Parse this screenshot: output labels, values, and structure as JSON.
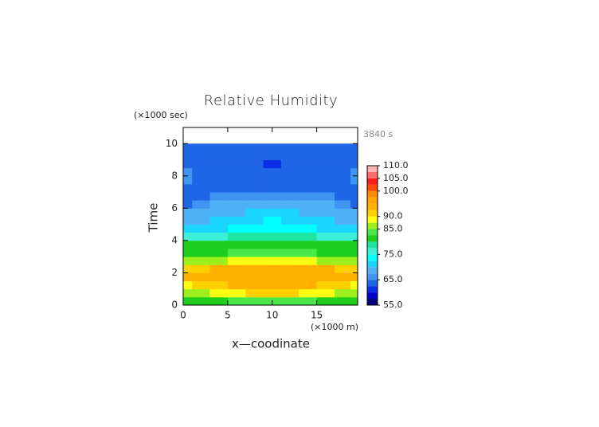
{
  "chart_data": {
    "type": "contour",
    "title": "Relative Humidity",
    "y_unit_label": "(×1000 sec)",
    "x_unit_label": "(×1000 m)",
    "xlabel": "x—coodinate",
    "ylabel": "Time",
    "annotation": "3840 s",
    "xlim": [
      0,
      19.6
    ],
    "ylim": [
      0,
      11
    ],
    "xticks": [
      0,
      5,
      10,
      15
    ],
    "yticks": [
      0,
      2,
      4,
      6,
      8,
      10
    ],
    "x": [
      0,
      2,
      4,
      6,
      8,
      10,
      12,
      14,
      16,
      18,
      19.6
    ],
    "y": [
      0.25,
      0.75,
      1.25,
      1.75,
      2.25,
      2.75,
      3.25,
      3.75,
      4.25,
      4.75,
      5.25,
      5.75,
      6.25,
      6.75,
      7.25,
      7.75,
      8.25,
      8.75,
      9.25,
      9.75
    ],
    "z": [
      [
        81,
        81,
        82,
        83,
        84,
        84,
        84,
        83,
        82,
        81,
        81
      ],
      [
        86,
        87,
        88,
        89,
        91,
        92,
        91,
        89,
        88,
        87,
        86
      ],
      [
        89,
        90,
        92,
        93,
        94,
        94,
        94,
        93,
        92,
        90,
        89
      ],
      [
        93,
        93,
        94,
        94,
        94,
        94,
        94,
        94,
        94,
        93,
        93
      ],
      [
        91,
        92,
        93,
        94,
        94,
        94,
        94,
        94,
        93,
        92,
        91
      ],
      [
        85,
        86,
        87,
        88,
        88,
        89,
        88,
        88,
        87,
        86,
        85
      ],
      [
        82,
        82,
        82,
        83,
        83,
        84,
        83,
        83,
        82,
        82,
        82
      ],
      [
        80,
        80,
        81,
        81,
        81,
        81,
        81,
        81,
        81,
        80,
        80
      ],
      [
        77,
        77,
        77,
        78,
        78,
        78,
        78,
        78,
        77,
        77,
        77
      ],
      [
        70,
        71,
        72,
        73,
        73,
        73,
        73,
        73,
        72,
        71,
        70
      ],
      [
        69,
        69,
        70,
        71,
        72,
        73,
        72,
        71,
        70,
        69,
        69
      ],
      [
        68,
        68,
        68,
        69,
        70,
        71,
        70,
        69,
        68,
        68,
        68
      ],
      [
        64,
        66,
        68,
        68,
        68,
        68,
        68,
        68,
        68,
        66,
        64
      ],
      [
        64,
        64,
        66,
        67,
        67,
        67,
        67,
        67,
        66,
        64,
        64
      ],
      [
        64,
        63,
        63,
        63,
        63,
        63,
        63,
        63,
        63,
        63,
        64
      ],
      [
        66,
        64,
        63,
        63,
        63,
        63,
        63,
        63,
        63,
        64,
        66
      ],
      [
        66,
        64,
        63,
        63,
        63,
        63,
        63,
        63,
        63,
        64,
        66
      ],
      [
        64,
        63,
        63,
        63,
        63,
        62,
        63,
        63,
        63,
        63,
        64
      ],
      [
        63,
        63,
        63,
        63,
        63,
        63,
        63,
        63,
        63,
        63,
        63
      ],
      [
        63,
        63,
        63,
        63,
        63,
        63,
        63,
        63,
        63,
        63,
        63
      ]
    ],
    "colorbar": {
      "levels": [
        55,
        57.5,
        60,
        62.5,
        65,
        67.5,
        70,
        72.5,
        75,
        77.5,
        80,
        82.5,
        85,
        87.5,
        90,
        92.5,
        95,
        97.5,
        100,
        102.5,
        105,
        107.5,
        110
      ],
      "colors": [
        "#00007a",
        "#0000c8",
        "#0a2ee8",
        "#1f66e6",
        "#3f95f0",
        "#4fb2f7",
        "#1ad6ff",
        "#00ffff",
        "#3ff0d8",
        "#1ee6a0",
        "#1ecf1e",
        "#49e849",
        "#9cf01e",
        "#ffff14",
        "#ffd000",
        "#ffb000",
        "#ffa500",
        "#ff8c00",
        "#ff4a00",
        "#ff1e1e",
        "#ff6a6a",
        "#ffb4b4"
      ],
      "ticks": [
        {
          "value": 55,
          "label": "55.0"
        },
        {
          "value": 65,
          "label": "65.0"
        },
        {
          "value": 75,
          "label": "75.0"
        },
        {
          "value": 85,
          "label": "85.0"
        },
        {
          "value": 90,
          "label": "90.0"
        },
        {
          "value": 100,
          "label": "100.0"
        },
        {
          "value": 105,
          "label": "105.0"
        },
        {
          "value": 110,
          "label": "110.0"
        }
      ]
    }
  }
}
